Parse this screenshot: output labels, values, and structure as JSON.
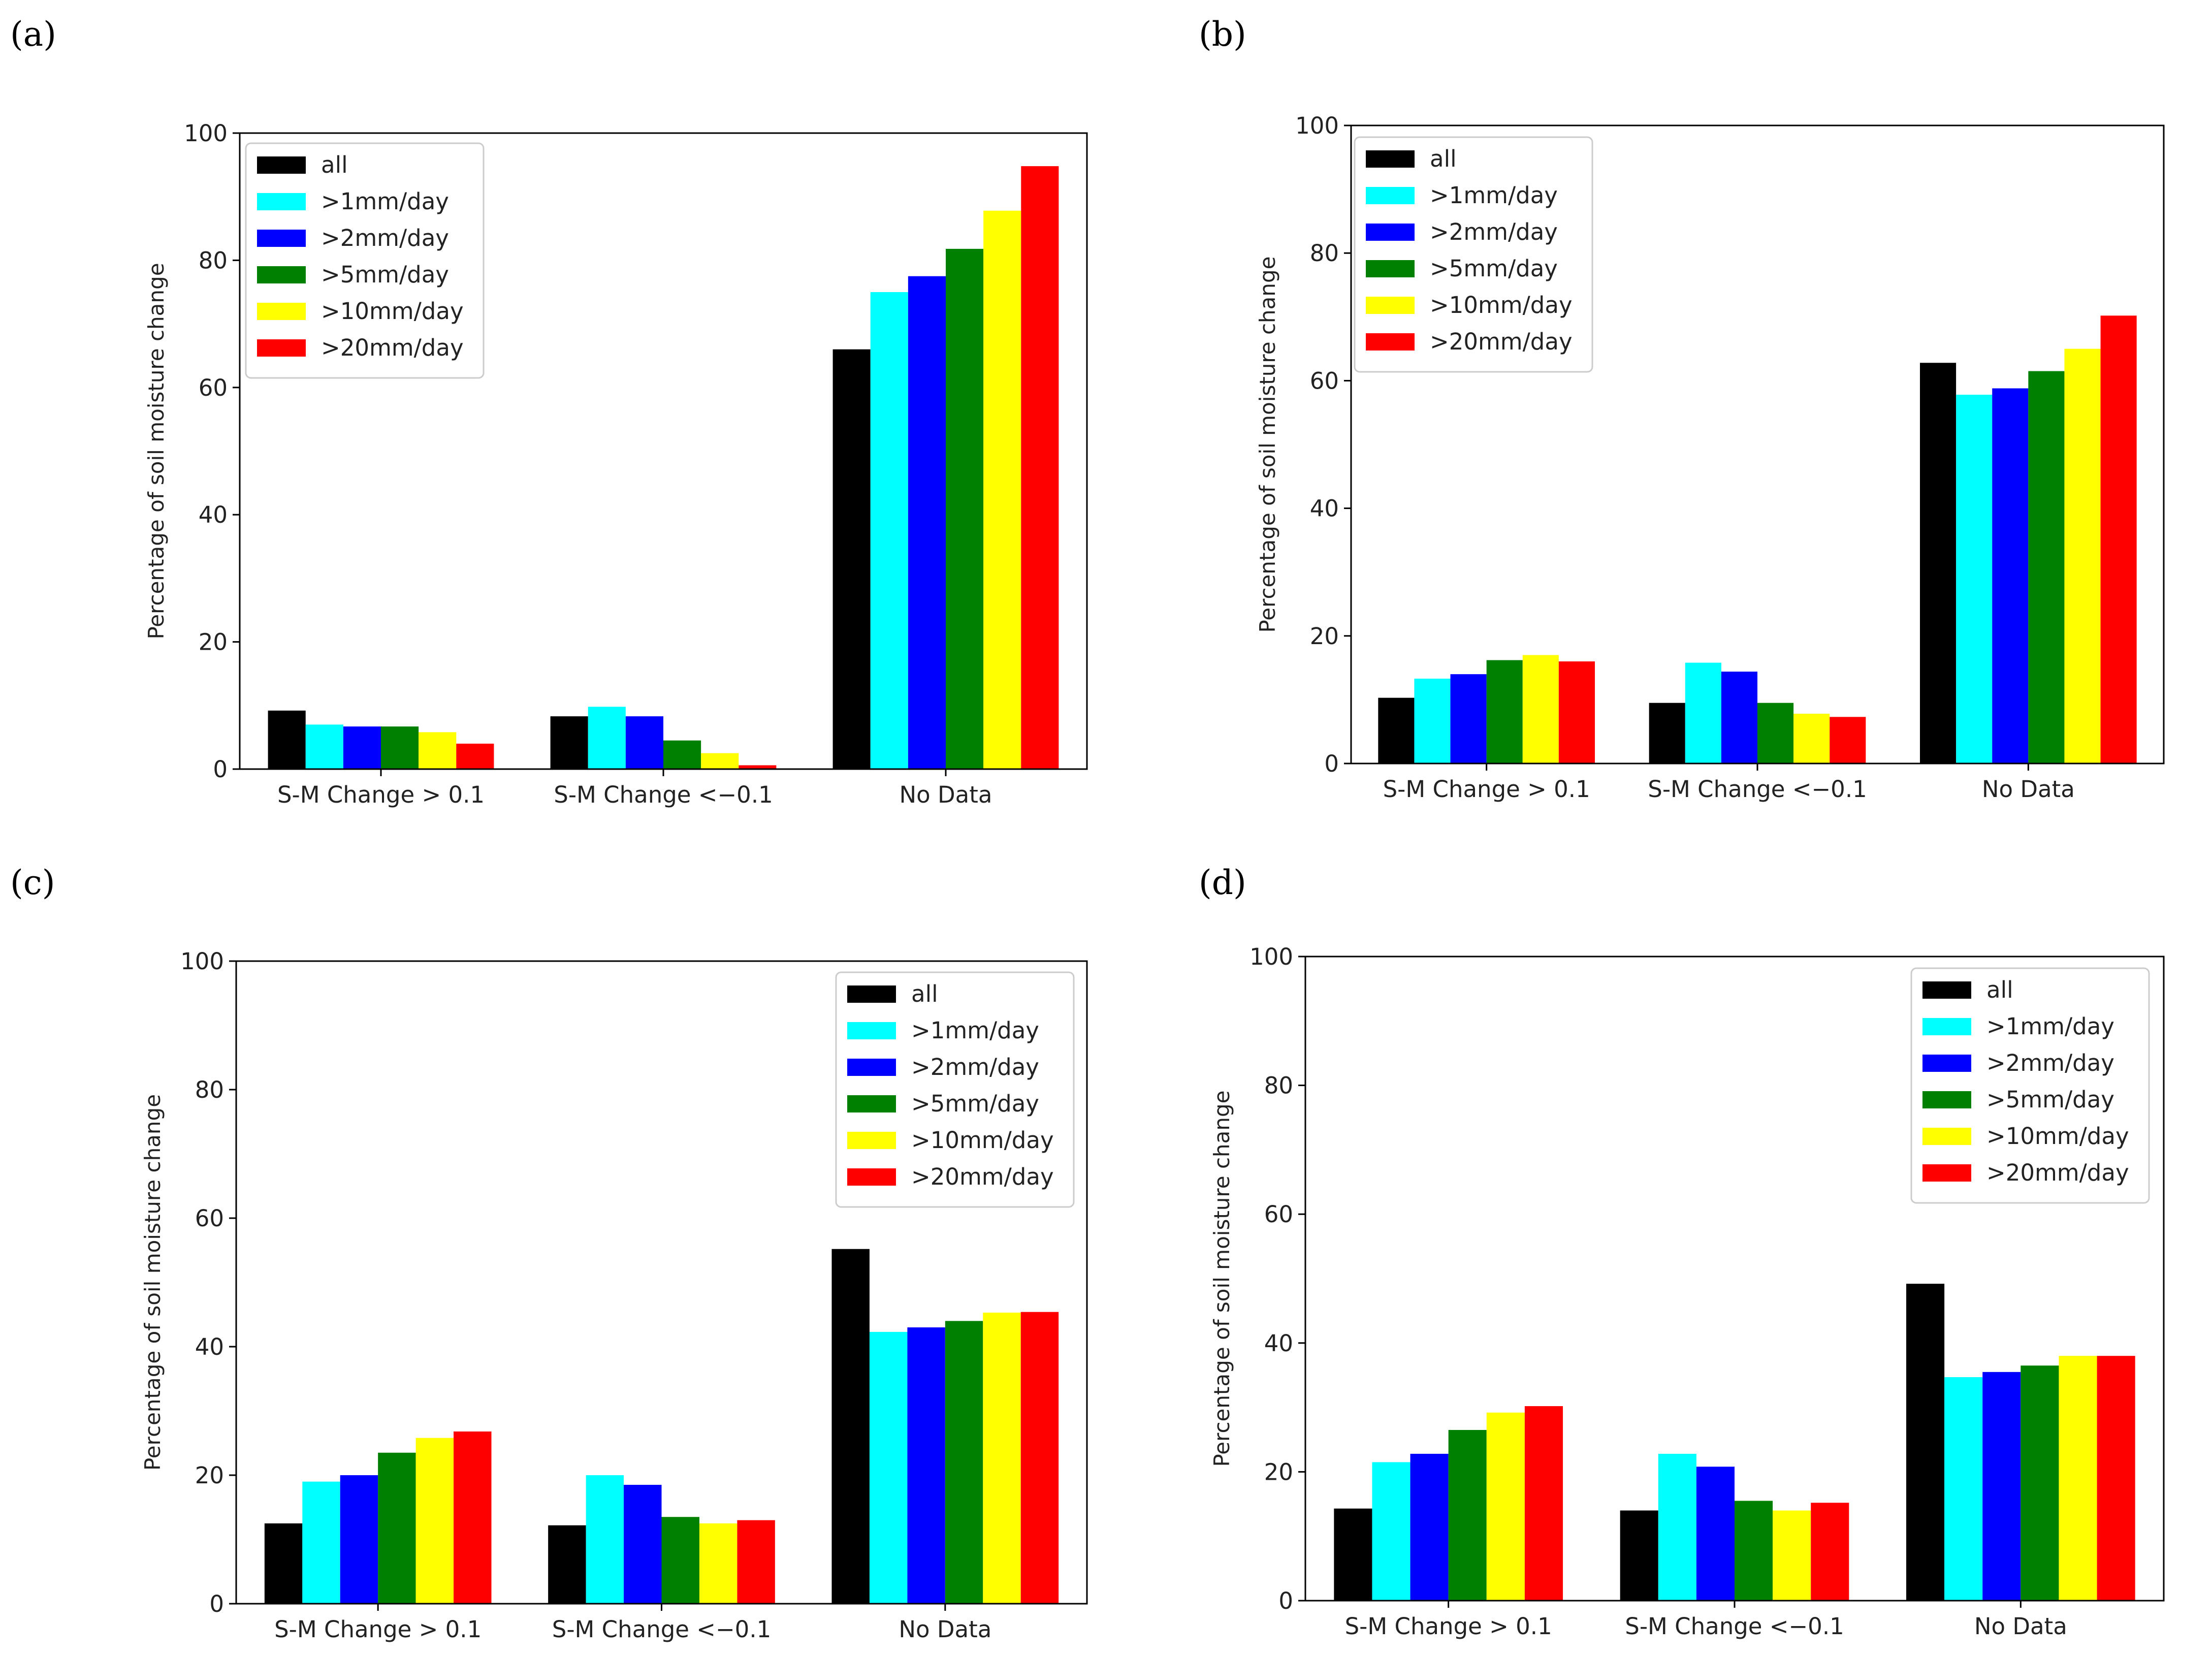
{
  "figure": {
    "panel_labels": [
      "(a)",
      "(b)",
      "(c)",
      "(d)"
    ]
  },
  "chart_data": [
    {
      "panel": "(a)",
      "type": "bar",
      "categories": [
        "S-M Change > 0.1",
        "S-M Change <−0.1",
        "No Data"
      ],
      "series": [
        {
          "name": "all",
          "color": "#000000",
          "values": [
            9.2,
            8.3,
            66
          ]
        },
        {
          "name": ">1mm/day",
          "color": "#00ffff",
          "values": [
            7.0,
            9.8,
            75
          ]
        },
        {
          "name": ">2mm/day",
          "color": "#0000ff",
          "values": [
            6.7,
            8.3,
            77.5
          ]
        },
        {
          "name": ">5mm/day",
          "color": "#008000",
          "values": [
            6.7,
            4.5,
            81.8
          ]
        },
        {
          "name": ">10mm/day",
          "color": "#ffff00",
          "values": [
            5.8,
            2.5,
            87.8
          ]
        },
        {
          "name": ">20mm/day",
          "color": "#ff0000",
          "values": [
            4.0,
            0.6,
            94.8
          ]
        }
      ],
      "ylabel": "Percentage of soil moisture change",
      "xlabel": "",
      "ylim": [
        0,
        100
      ],
      "yticks": [
        "0",
        "20",
        "40",
        "60",
        "80",
        "100"
      ],
      "legend": "top-left"
    },
    {
      "panel": "(b)",
      "type": "bar",
      "categories": [
        "S-M Change > 0.1",
        "S-M Change <−0.1",
        "No Data"
      ],
      "series": [
        {
          "name": "all",
          "color": "#000000",
          "values": [
            10.3,
            9.5,
            62.8
          ]
        },
        {
          "name": ">1mm/day",
          "color": "#00ffff",
          "values": [
            13.3,
            15.8,
            57.8
          ]
        },
        {
          "name": ">2mm/day",
          "color": "#0000ff",
          "values": [
            14.0,
            14.4,
            58.8
          ]
        },
        {
          "name": ">5mm/day",
          "color": "#008000",
          "values": [
            16.2,
            9.5,
            61.5
          ]
        },
        {
          "name": ">10mm/day",
          "color": "#ffff00",
          "values": [
            17.0,
            7.8,
            65
          ]
        },
        {
          "name": ">20mm/day",
          "color": "#ff0000",
          "values": [
            16.0,
            7.3,
            70.2
          ]
        }
      ],
      "ylabel": "Percentage of soil moisture change",
      "xlabel": "",
      "ylim": [
        0,
        100
      ],
      "yticks": [
        "0",
        "20",
        "40",
        "60",
        "80",
        "100"
      ],
      "legend": "top-left"
    },
    {
      "panel": "(c)",
      "type": "bar",
      "categories": [
        "S-M Change > 0.1",
        "S-M Change <−0.1",
        "No Data"
      ],
      "series": [
        {
          "name": "all",
          "color": "#000000",
          "values": [
            12.5,
            12.2,
            55.2
          ]
        },
        {
          "name": ">1mm/day",
          "color": "#00ffff",
          "values": [
            19.0,
            20.0,
            42.3
          ]
        },
        {
          "name": ">2mm/day",
          "color": "#0000ff",
          "values": [
            20.0,
            18.5,
            43.0
          ]
        },
        {
          "name": ">5mm/day",
          "color": "#008000",
          "values": [
            23.5,
            13.5,
            44.0
          ]
        },
        {
          "name": ">10mm/day",
          "color": "#ffff00",
          "values": [
            25.8,
            12.5,
            45.3
          ]
        },
        {
          "name": ">20mm/day",
          "color": "#ff0000",
          "values": [
            26.8,
            13.0,
            45.4
          ]
        }
      ],
      "ylabel": "Percentage of soil moisture change",
      "xlabel": "",
      "ylim": [
        0,
        100
      ],
      "yticks": [
        "0",
        "20",
        "40",
        "60",
        "80",
        "100"
      ],
      "legend": "top-right"
    },
    {
      "panel": "(d)",
      "type": "bar",
      "categories": [
        "S-M Change > 0.1",
        "S-M Change <−0.1",
        "No Data"
      ],
      "series": [
        {
          "name": "all",
          "color": "#000000",
          "values": [
            14.3,
            14.0,
            49.2
          ]
        },
        {
          "name": ">1mm/day",
          "color": "#00ffff",
          "values": [
            21.5,
            22.8,
            34.7
          ]
        },
        {
          "name": ">2mm/day",
          "color": "#0000ff",
          "values": [
            22.8,
            20.8,
            35.5
          ]
        },
        {
          "name": ">5mm/day",
          "color": "#008000",
          "values": [
            26.5,
            15.5,
            36.5
          ]
        },
        {
          "name": ">10mm/day",
          "color": "#ffff00",
          "values": [
            29.2,
            14.0,
            38.0
          ]
        },
        {
          "name": ">20mm/day",
          "color": "#ff0000",
          "values": [
            30.2,
            15.2,
            38.0
          ]
        }
      ],
      "ylabel": "Percentage of soil moisture change",
      "xlabel": "",
      "ylim": [
        0,
        100
      ],
      "yticks": [
        "0",
        "20",
        "40",
        "60",
        "80",
        "100"
      ],
      "legend": "top-right"
    }
  ]
}
